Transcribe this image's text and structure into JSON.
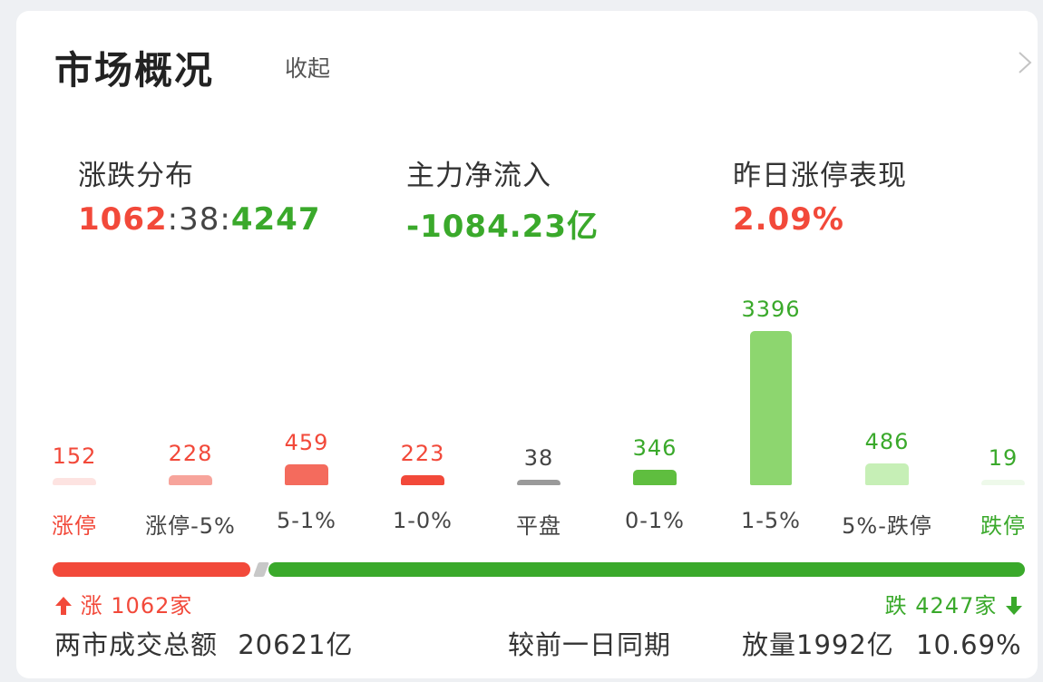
{
  "header": {
    "title": "市场概况",
    "collapse_label": "收起",
    "chevron_icon": "chevron-right-icon"
  },
  "stats": {
    "distribution": {
      "label": "涨跌分布",
      "up": "1062",
      "sep1": ":",
      "flat": "38",
      "sep2": ":",
      "down": "4247"
    },
    "net_inflow": {
      "label": "主力净流入",
      "value": "-1084.23亿"
    },
    "limit_up_perf": {
      "label": "昨日涨停表现",
      "value": "2.09%"
    }
  },
  "chart_data": {
    "type": "bar",
    "categories": [
      "涨停",
      "涨停-5%",
      "5-1%",
      "1-0%",
      "平盘",
      "0-1%",
      "1-5%",
      "5%-跌停",
      "跌停"
    ],
    "values": [
      152,
      228,
      459,
      223,
      38,
      346,
      3396,
      486,
      19
    ],
    "colors": [
      "#fde3e1",
      "#f7a49b",
      "#f46b5d",
      "#f2493a",
      "#9a9a9a",
      "#5fbe3f",
      "#8dd66f",
      "#c6efb6",
      "#eef9ea"
    ],
    "value_colors": [
      "#f2493a",
      "#f2493a",
      "#f2493a",
      "#f2493a",
      "#444444",
      "#3aa92b",
      "#3aa92b",
      "#3aa92b",
      "#3aa92b"
    ],
    "label_colors": [
      "#f2493a",
      "#444444",
      "#444444",
      "#444444",
      "#444444",
      "#444444",
      "#444444",
      "#444444",
      "#3aa92b"
    ]
  },
  "split_bar": {
    "up_label": "涨",
    "up_count": "1062",
    "up_unit": "家",
    "down_label": "跌",
    "down_count": "4247",
    "down_unit": "家",
    "up_icon": "arrow-up-icon",
    "down_icon": "arrow-down-icon"
  },
  "footer": {
    "turnover_label": "两市成交总额",
    "turnover_value": "20621亿",
    "compare_label": "较前一日同期",
    "volume_change": "放量1992亿",
    "pct_change": "10.69%"
  },
  "colors": {
    "up": "#f2493a",
    "down": "#3aa92b"
  }
}
